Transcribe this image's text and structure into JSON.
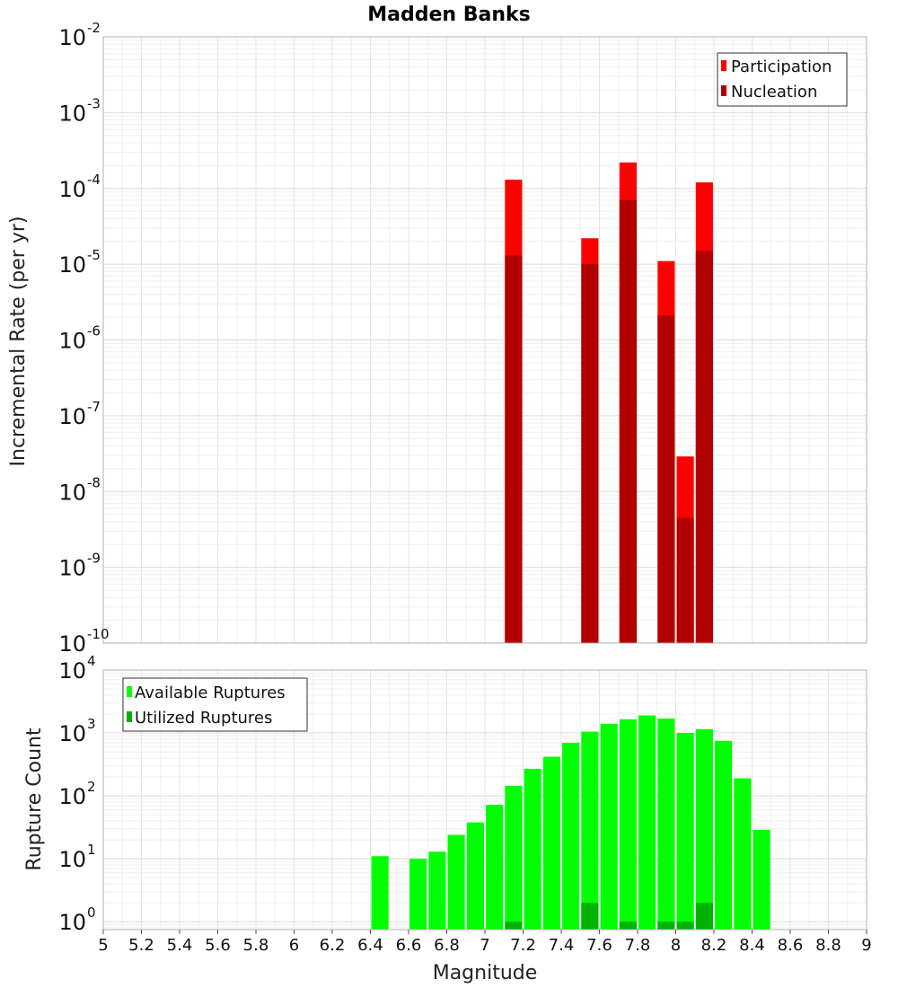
{
  "chart_data": [
    {
      "type": "bar",
      "title": "Madden Banks",
      "ylabel": "Incremental Rate (per yr)",
      "xlabel": "",
      "y_scale": "log",
      "ylim": [
        1e-10,
        0.01
      ],
      "xlim": [
        5,
        9
      ],
      "grid": true,
      "legend_position": "top-right",
      "bar_width": 0.09,
      "series": [
        {
          "name": "Participation",
          "color": "#ff0000",
          "x": [
            7.15,
            7.55,
            7.75,
            7.95,
            8.05,
            8.15
          ],
          "values": [
            0.00013,
            2.2e-05,
            0.00022,
            1.1e-05,
            2.9e-08,
            0.00012
          ]
        },
        {
          "name": "Nucleation",
          "color": "#b20000",
          "x": [
            7.15,
            7.55,
            7.75,
            7.95,
            8.05,
            8.15
          ],
          "values": [
            1.3e-05,
            1e-05,
            7e-05,
            2.1e-06,
            4.5e-09,
            1.5e-05
          ]
        }
      ]
    },
    {
      "type": "bar",
      "title": "",
      "ylabel": "Rupture Count",
      "xlabel": "Magnitude",
      "y_scale": "log",
      "ylim": [
        0.75,
        10000.0
      ],
      "xlim": [
        5,
        9
      ],
      "grid": true,
      "legend_position": "top-left",
      "bar_width": 0.09,
      "x_ticks": [
        "5",
        "5.2",
        "5.4",
        "5.6",
        "5.8",
        "6",
        "6.2",
        "6.4",
        "6.6",
        "6.8",
        "7",
        "7.2",
        "7.4",
        "7.6",
        "7.8",
        "8",
        "8.2",
        "8.4",
        "8.6",
        "8.8",
        "9"
      ],
      "series": [
        {
          "name": "Available Ruptures",
          "color": "#00ff00",
          "x": [
            6.45,
            6.65,
            6.75,
            6.85,
            6.95,
            7.05,
            7.15,
            7.25,
            7.35,
            7.45,
            7.55,
            7.65,
            7.75,
            7.85,
            7.95,
            8.05,
            8.15,
            8.25,
            8.35,
            8.45
          ],
          "values": [
            11,
            10,
            13,
            24,
            38,
            72,
            145,
            270,
            420,
            700,
            1050,
            1400,
            1650,
            1900,
            1700,
            1000,
            1150,
            750,
            190,
            29
          ]
        },
        {
          "name": "Utilized Ruptures",
          "color": "#00b200",
          "x": [
            7.15,
            7.55,
            7.75,
            7.95,
            8.05,
            8.15
          ],
          "values": [
            1,
            2,
            1,
            1,
            1,
            2
          ]
        }
      ]
    }
  ]
}
